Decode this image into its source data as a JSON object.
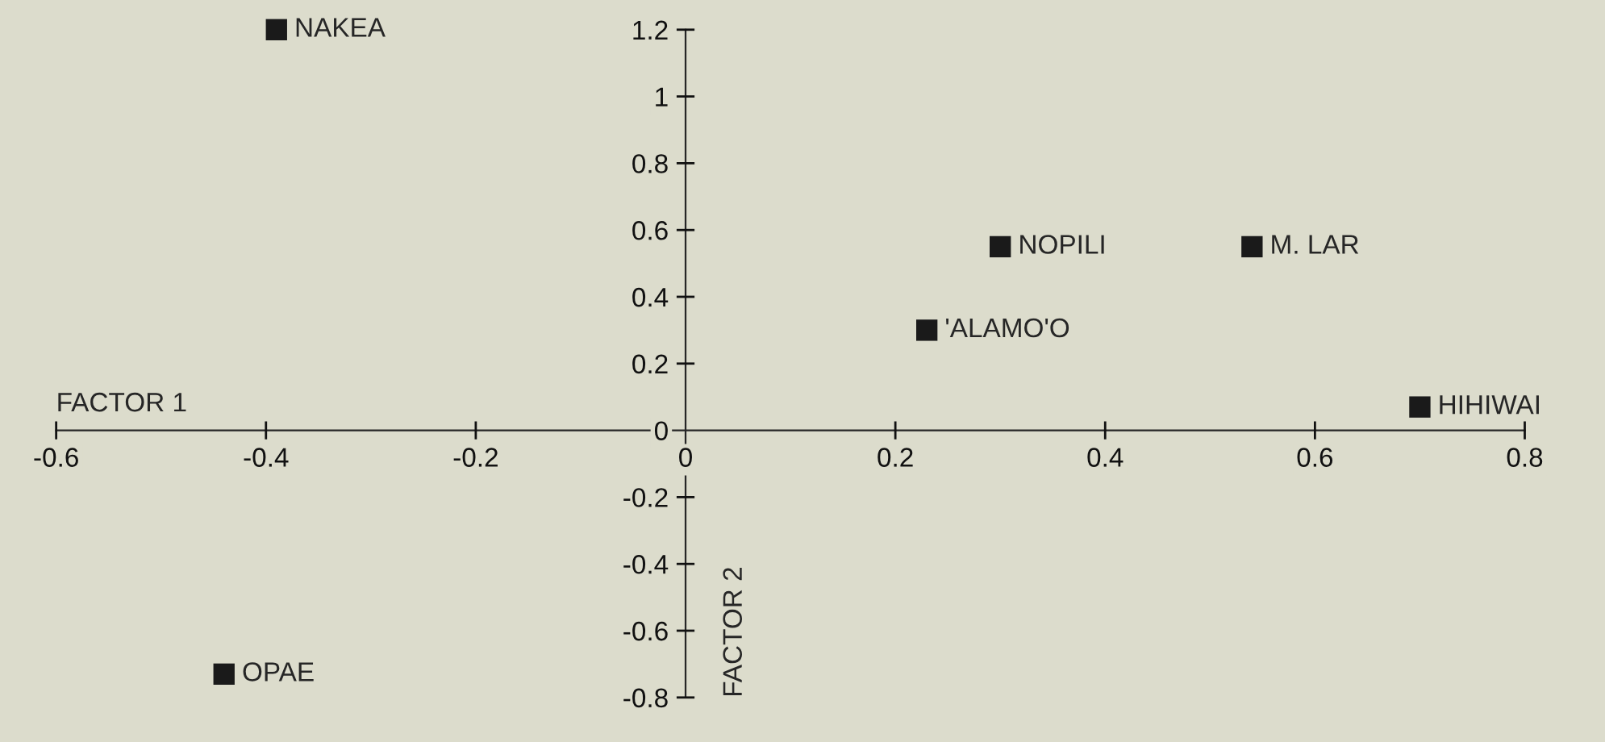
{
  "chart_data": {
    "type": "scatter",
    "xlabel": "FACTOR 1",
    "ylabel": "FACTOR 2",
    "x": [
      -0.39,
      -0.44,
      0.23,
      0.3,
      0.54,
      0.7
    ],
    "series": [
      {
        "color": "#1a1a1a",
        "values": [
          1.2,
          -0.73,
          0.3,
          0.55,
          0.55,
          0.07
        ]
      }
    ],
    "marker": "square",
    "xlim": [
      -0.6,
      0.8
    ],
    "xticks": [
      -0.6,
      -0.4,
      -0.2,
      0,
      0.2,
      0.4,
      0.6,
      0.8
    ],
    "ylim": [
      -0.8,
      1.2
    ],
    "yticks": [
      -0.8,
      -0.6,
      -0.4,
      -0.2,
      0,
      0.2,
      0.4,
      0.6,
      0.8,
      1,
      1.2
    ],
    "annotations": [
      {
        "text": "NAKEA",
        "x": -0.39,
        "y": 1.2
      },
      {
        "text": "OPAE",
        "x": -0.44,
        "y": -0.73
      },
      {
        "text": "'ALAMO'O",
        "x": 0.23,
        "y": 0.3
      },
      {
        "text": "NOPILI",
        "x": 0.3,
        "y": 0.55
      },
      {
        "text": "M. LAR",
        "x": 0.54,
        "y": 0.55
      },
      {
        "text": "HIHIWAI",
        "x": 0.7,
        "y": 0.07
      }
    ],
    "grid": false,
    "legend": false
  }
}
